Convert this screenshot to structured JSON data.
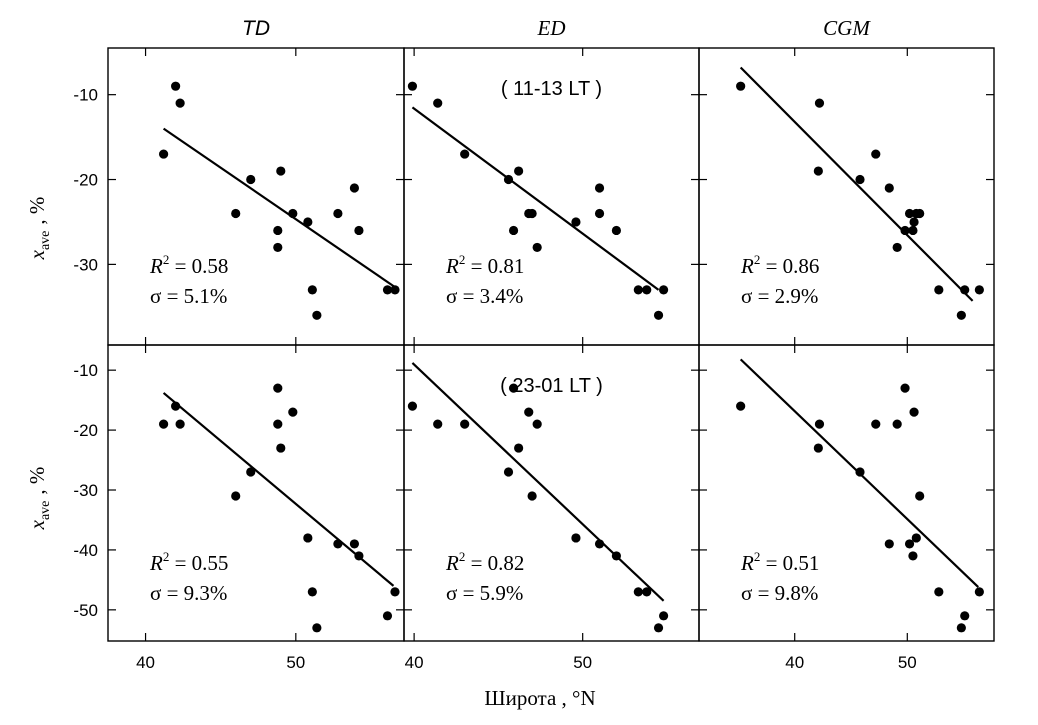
{
  "figure": {
    "column_titles": [
      "TD",
      "ED",
      "CGM"
    ],
    "xlabel": "Широта , °N",
    "ylabel": {
      "symbol": "x",
      "subscript": "ave",
      "unit": ", %"
    }
  },
  "chart_data": [
    {
      "type": "scatter",
      "row": 0,
      "col": 0,
      "title": "TD",
      "xlim": [
        37.5,
        57.2
      ],
      "ylim": [
        -39.5,
        -4.5
      ],
      "xticks": [
        40,
        50
      ],
      "yticks": [
        -10,
        -20,
        -30
      ],
      "points": [
        [
          41.2,
          -17
        ],
        [
          42,
          -9
        ],
        [
          42.3,
          -11
        ],
        [
          46,
          -24
        ],
        [
          47,
          -20
        ],
        [
          48.8,
          -26
        ],
        [
          48.8,
          -28
        ],
        [
          49,
          -19
        ],
        [
          49.8,
          -24
        ],
        [
          50.8,
          -25
        ],
        [
          51.1,
          -33
        ],
        [
          51.4,
          -36
        ],
        [
          52.8,
          -24
        ],
        [
          53.9,
          -21
        ],
        [
          54.2,
          -26
        ],
        [
          56.1,
          -33
        ],
        [
          56.6,
          -33
        ]
      ],
      "fit": [
        [
          41.2,
          -14
        ],
        [
          56.7,
          -32.8
        ]
      ],
      "r2": "0.58",
      "sigma": "5.1%"
    },
    {
      "type": "scatter",
      "row": 0,
      "col": 1,
      "title": "ED",
      "annotation": "( 11-13 LT )",
      "xlim": [
        39.4,
        56.9
      ],
      "ylim": [
        -39.5,
        -4.5
      ],
      "xticks": [
        40,
        50
      ],
      "yticks": [
        -10,
        -20,
        -30
      ],
      "points": [
        [
          39.9,
          -9
        ],
        [
          41.4,
          -11
        ],
        [
          43,
          -17
        ],
        [
          45.6,
          -20
        ],
        [
          45.9,
          -26
        ],
        [
          46.2,
          -19
        ],
        [
          46.8,
          -24
        ],
        [
          47,
          -24
        ],
        [
          47.3,
          -28
        ],
        [
          49.6,
          -25
        ],
        [
          51,
          -21
        ],
        [
          51,
          -24
        ],
        [
          52,
          -26
        ],
        [
          53.3,
          -33
        ],
        [
          53.8,
          -33
        ],
        [
          54.5,
          -36
        ],
        [
          54.8,
          -33
        ]
      ],
      "fit": [
        [
          39.9,
          -11.5
        ],
        [
          54.5,
          -33
        ]
      ],
      "r2": "0.81",
      "sigma": "3.4%"
    },
    {
      "type": "scatter",
      "row": 0,
      "col": 2,
      "title": "CGM",
      "xlim": [
        31.5,
        57.7
      ],
      "ylim": [
        -39.5,
        -4.5
      ],
      "xticks": [
        40,
        50
      ],
      "yticks": [
        -10,
        -20,
        -30
      ],
      "points": [
        [
          35.2,
          -9
        ],
        [
          42.2,
          -11
        ],
        [
          42.1,
          -19
        ],
        [
          45.8,
          -20
        ],
        [
          47.2,
          -17
        ],
        [
          48.4,
          -21
        ],
        [
          49.1,
          -28
        ],
        [
          49.8,
          -26
        ],
        [
          50.2,
          -24
        ],
        [
          50.5,
          -26
        ],
        [
          50.6,
          -25
        ],
        [
          50.8,
          -24
        ],
        [
          51.1,
          -24
        ],
        [
          52.8,
          -33
        ],
        [
          54.8,
          -36
        ],
        [
          55.1,
          -33
        ],
        [
          56.4,
          -33
        ]
      ],
      "fit": [
        [
          35.2,
          -6.8
        ],
        [
          55.8,
          -34.3
        ]
      ],
      "r2": "0.86",
      "sigma": "2.9%"
    },
    {
      "type": "scatter",
      "row": 1,
      "col": 0,
      "title": "",
      "xlim": [
        37.5,
        57.2
      ],
      "ylim": [
        -55.2,
        -5.8
      ],
      "xticks": [
        40,
        50
      ],
      "yticks": [
        -10,
        -20,
        -30,
        -40,
        -50
      ],
      "points": [
        [
          41.2,
          -19
        ],
        [
          42,
          -16
        ],
        [
          42.3,
          -19
        ],
        [
          46,
          -31
        ],
        [
          47,
          -27
        ],
        [
          48.8,
          -13
        ],
        [
          48.8,
          -19
        ],
        [
          49,
          -23
        ],
        [
          49.8,
          -17
        ],
        [
          50.8,
          -38
        ],
        [
          51.1,
          -47
        ],
        [
          51.4,
          -53
        ],
        [
          52.8,
          -39
        ],
        [
          53.9,
          -39
        ],
        [
          54.2,
          -41
        ],
        [
          56.1,
          -51
        ],
        [
          56.6,
          -47
        ]
      ],
      "fit": [
        [
          41.2,
          -13.8
        ],
        [
          56.5,
          -46
        ]
      ],
      "r2": "0.55",
      "sigma": "9.3%"
    },
    {
      "type": "scatter",
      "row": 1,
      "col": 1,
      "title": "",
      "annotation": "( 23-01 LT )",
      "xlim": [
        39.4,
        56.9
      ],
      "ylim": [
        -55.2,
        -5.8
      ],
      "xticks": [
        40,
        50
      ],
      "yticks": [
        -10,
        -20,
        -30,
        -40,
        -50
      ],
      "points": [
        [
          39.9,
          -16
        ],
        [
          41.4,
          -19
        ],
        [
          43,
          -19
        ],
        [
          45.6,
          -27
        ],
        [
          45.9,
          -13
        ],
        [
          46.2,
          -23
        ],
        [
          46.8,
          -17
        ],
        [
          47,
          -31
        ],
        [
          47.3,
          -19
        ],
        [
          49.6,
          -38
        ],
        [
          51,
          -39
        ],
        [
          52,
          -41
        ],
        [
          53.3,
          -47
        ],
        [
          53.8,
          -47
        ],
        [
          54.5,
          -53
        ],
        [
          54.8,
          -51
        ]
      ],
      "fit": [
        [
          39.9,
          -8.8
        ],
        [
          54.8,
          -48.5
        ]
      ],
      "r2": "0.82",
      "sigma": "5.9%"
    },
    {
      "type": "scatter",
      "row": 1,
      "col": 2,
      "title": "",
      "xlim": [
        31.5,
        57.7
      ],
      "ylim": [
        -55.2,
        -5.8
      ],
      "xticks": [
        40,
        50
      ],
      "yticks": [
        -10,
        -20,
        -30,
        -40,
        -50
      ],
      "points": [
        [
          35.2,
          -16
        ],
        [
          42.2,
          -19
        ],
        [
          42.1,
          -23
        ],
        [
          45.8,
          -27
        ],
        [
          47.2,
          -19
        ],
        [
          48.4,
          -39
        ],
        [
          49.1,
          -19
        ],
        [
          49.8,
          -13
        ],
        [
          50.2,
          -39
        ],
        [
          50.5,
          -41
        ],
        [
          50.6,
          -17
        ],
        [
          50.8,
          -38
        ],
        [
          51.1,
          -31
        ],
        [
          52.8,
          -47
        ],
        [
          54.8,
          -53
        ],
        [
          55.1,
          -51
        ],
        [
          56.4,
          -47
        ]
      ],
      "fit": [
        [
          35.2,
          -8.2
        ],
        [
          56.3,
          -46.2
        ]
      ],
      "r2": "0.51",
      "sigma": "9.8%"
    }
  ]
}
